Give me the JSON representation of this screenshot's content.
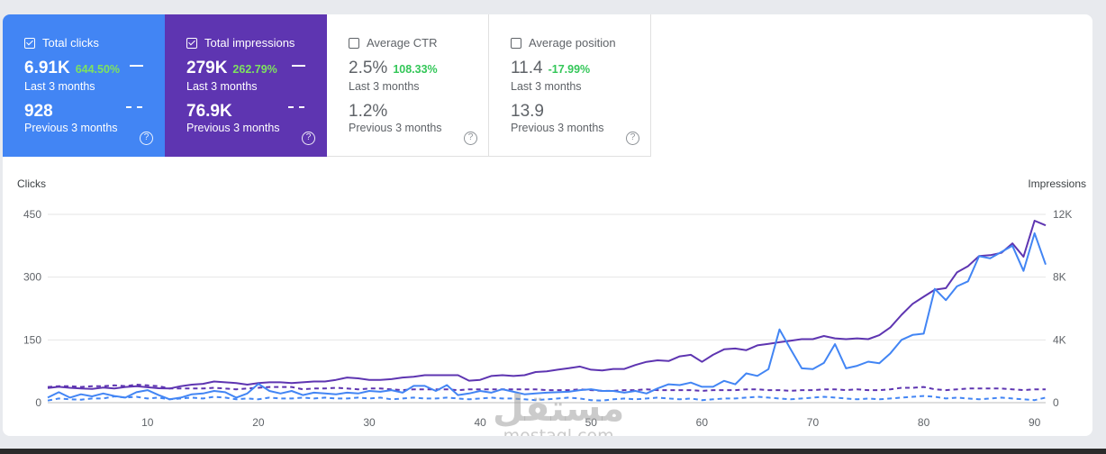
{
  "cards": [
    {
      "id": "clicks",
      "title": "Total clicks",
      "checked": true,
      "value": "6.91K",
      "change": "644.50%",
      "period": "Last 3 months",
      "prev_value": "928",
      "prev_period": "Previous 3 months"
    },
    {
      "id": "impressions",
      "title": "Total impressions",
      "checked": true,
      "value": "279K",
      "change": "262.79%",
      "period": "Last 3 months",
      "prev_value": "76.9K",
      "prev_period": "Previous 3 months"
    },
    {
      "id": "ctr",
      "title": "Average CTR",
      "checked": false,
      "value": "2.5%",
      "change": "108.33%",
      "period": "Last 3 months",
      "prev_value": "1.2%",
      "prev_period": "Previous 3 months"
    },
    {
      "id": "position",
      "title": "Average position",
      "checked": false,
      "value": "11.4",
      "change": "-17.99%",
      "period": "Last 3 months",
      "prev_value": "13.9",
      "prev_period": "Previous 3 months"
    }
  ],
  "help_glyph": "?",
  "watermark": {
    "main": "مستقل",
    "sub": "mostaql.com"
  },
  "colors": {
    "clicks": "#4285f4",
    "impressions": "#5e35b1"
  },
  "chart_data": {
    "type": "line",
    "ylabel_left": "Clicks",
    "ylabel_right": "Impressions",
    "ylim_left": [
      0,
      450
    ],
    "ylim_right": [
      0,
      12000
    ],
    "yticks_left": [
      "0",
      "150",
      "300",
      "450"
    ],
    "yticks_right": [
      "0",
      "4K",
      "8K",
      "12K"
    ],
    "xlim": [
      1,
      91
    ],
    "xticks": [
      "10",
      "20",
      "30",
      "40",
      "50",
      "60",
      "70",
      "80",
      "90"
    ],
    "grid": true,
    "series": [
      {
        "name": "Clicks",
        "axis": "left",
        "style": "solid",
        "color": "#4285f4",
        "x": [
          1,
          2,
          3,
          4,
          5,
          6,
          7,
          8,
          9,
          10,
          11,
          12,
          13,
          14,
          15,
          16,
          17,
          18,
          19,
          20,
          21,
          22,
          23,
          24,
          25,
          26,
          27,
          28,
          29,
          30,
          31,
          32,
          33,
          34,
          35,
          36,
          37,
          38,
          39,
          40,
          41,
          42,
          43,
          44,
          45,
          46,
          47,
          48,
          49,
          50,
          51,
          52,
          53,
          54,
          55,
          56,
          57,
          58,
          59,
          60,
          61,
          62,
          63,
          64,
          65,
          66,
          67,
          68,
          69,
          70,
          71,
          72,
          73,
          74,
          75,
          76,
          77,
          78,
          79,
          80,
          81,
          82,
          83,
          84,
          85,
          86,
          87,
          88,
          89,
          90,
          91
        ],
        "y": [
          12,
          25,
          12,
          20,
          15,
          22,
          16,
          12,
          25,
          30,
          18,
          8,
          12,
          20,
          22,
          28,
          25,
          12,
          22,
          45,
          28,
          22,
          28,
          18,
          24,
          22,
          20,
          24,
          22,
          28,
          26,
          30,
          24,
          40,
          40,
          28,
          42,
          18,
          22,
          28,
          24,
          32,
          26,
          20,
          22,
          24,
          25,
          26,
          30,
          32,
          28,
          28,
          24,
          28,
          22,
          34,
          44,
          42,
          48,
          38,
          38,
          52,
          44,
          70,
          64,
          80,
          175,
          128,
          82,
          80,
          95,
          140,
          82,
          88,
          98,
          94,
          118,
          150,
          162,
          165,
          272,
          245,
          278,
          290,
          350,
          345,
          360,
          375,
          315,
          405,
          330
        ]
      },
      {
        "name": "Impressions",
        "axis": "right",
        "style": "solid",
        "color": "#5e35b1",
        "x": [
          1,
          2,
          3,
          4,
          5,
          6,
          7,
          8,
          9,
          10,
          11,
          12,
          13,
          14,
          15,
          16,
          17,
          18,
          19,
          20,
          21,
          22,
          23,
          24,
          25,
          26,
          27,
          28,
          29,
          30,
          31,
          32,
          33,
          34,
          35,
          36,
          37,
          38,
          39,
          40,
          41,
          42,
          43,
          44,
          45,
          46,
          47,
          48,
          49,
          50,
          51,
          52,
          53,
          54,
          55,
          56,
          57,
          58,
          59,
          60,
          61,
          62,
          63,
          64,
          65,
          66,
          67,
          68,
          69,
          70,
          71,
          72,
          73,
          74,
          75,
          76,
          77,
          78,
          79,
          80,
          81,
          82,
          83,
          84,
          85,
          86,
          87,
          88,
          89,
          90,
          91
        ],
        "y": [
          930,
          1010,
          950,
          900,
          880,
          960,
          900,
          1000,
          1050,
          980,
          920,
          900,
          1050,
          1150,
          1200,
          1350,
          1300,
          1250,
          1150,
          1250,
          1300,
          1300,
          1250,
          1300,
          1350,
          1350,
          1450,
          1600,
          1550,
          1450,
          1450,
          1500,
          1600,
          1650,
          1750,
          1750,
          1750,
          1750,
          1400,
          1450,
          1700,
          1750,
          1700,
          1750,
          1950,
          2000,
          2100,
          2200,
          2300,
          2100,
          2050,
          2150,
          2150,
          2400,
          2600,
          2700,
          2650,
          2950,
          3050,
          2600,
          3050,
          3400,
          3450,
          3350,
          3650,
          3750,
          3850,
          3950,
          4050,
          4050,
          4250,
          4100,
          4050,
          4100,
          4050,
          4300,
          4800,
          5600,
          6300,
          6750,
          7200,
          7300,
          8300,
          8700,
          9350,
          9400,
          9550,
          10150,
          9300,
          11600,
          11300
        ]
      },
      {
        "name": "Clicks (previous)",
        "axis": "left",
        "style": "dashed",
        "color": "#4285f4",
        "x": [
          1,
          2,
          3,
          4,
          5,
          6,
          7,
          8,
          9,
          10,
          11,
          12,
          13,
          14,
          15,
          16,
          17,
          18,
          19,
          20,
          21,
          22,
          23,
          24,
          25,
          26,
          27,
          28,
          29,
          30,
          31,
          32,
          33,
          34,
          35,
          36,
          37,
          38,
          39,
          40,
          41,
          42,
          43,
          44,
          45,
          46,
          47,
          48,
          49,
          50,
          51,
          52,
          53,
          54,
          55,
          56,
          57,
          58,
          59,
          60,
          61,
          62,
          63,
          64,
          65,
          66,
          67,
          68,
          69,
          70,
          71,
          72,
          73,
          74,
          75,
          76,
          77,
          78,
          79,
          80,
          81,
          82,
          83,
          84,
          85,
          86,
          87,
          88,
          89,
          90,
          91
        ],
        "y": [
          5,
          10,
          8,
          7,
          10,
          10,
          15,
          12,
          14,
          10,
          12,
          8,
          10,
          12,
          10,
          14,
          12,
          8,
          10,
          8,
          12,
          10,
          10,
          12,
          10,
          12,
          10,
          10,
          12,
          10,
          12,
          8,
          10,
          12,
          10,
          10,
          12,
          10,
          8,
          10,
          12,
          10,
          10,
          8,
          6,
          8,
          10,
          12,
          10,
          6,
          5,
          8,
          10,
          8,
          10,
          12,
          10,
          8,
          10,
          6,
          8,
          10,
          10,
          12,
          14,
          12,
          10,
          8,
          10,
          12,
          14,
          12,
          10,
          8,
          10,
          8,
          10,
          12,
          14,
          16,
          14,
          10,
          12,
          10,
          8,
          10,
          12,
          10,
          8,
          6,
          12
        ]
      },
      {
        "name": "Impressions (previous)",
        "axis": "right",
        "style": "dashed",
        "color": "#5e35b1",
        "x": [
          1,
          2,
          3,
          4,
          5,
          6,
          7,
          8,
          9,
          10,
          11,
          12,
          13,
          14,
          15,
          16,
          17,
          18,
          19,
          20,
          21,
          22,
          23,
          24,
          25,
          26,
          27,
          28,
          29,
          30,
          31,
          32,
          33,
          34,
          35,
          36,
          37,
          38,
          39,
          40,
          41,
          42,
          43,
          44,
          45,
          46,
          47,
          48,
          49,
          50,
          51,
          52,
          53,
          54,
          55,
          56,
          57,
          58,
          59,
          60,
          61,
          62,
          63,
          64,
          65,
          66,
          67,
          68,
          69,
          70,
          71,
          72,
          73,
          74,
          75,
          76,
          77,
          78,
          79,
          80,
          81,
          82,
          83,
          84,
          85,
          86,
          87,
          88,
          89,
          90,
          91
        ],
        "y": [
          1000,
          1050,
          1050,
          1000,
          1050,
          1050,
          1100,
          1050,
          1150,
          1100,
          1050,
          900,
          900,
          900,
          900,
          950,
          900,
          850,
          900,
          950,
          1000,
          1000,
          1000,
          850,
          900,
          900,
          950,
          900,
          850,
          900,
          900,
          850,
          800,
          850,
          850,
          850,
          850,
          800,
          850,
          850,
          850,
          850,
          850,
          850,
          850,
          800,
          800,
          800,
          850,
          800,
          750,
          750,
          800,
          800,
          850,
          800,
          800,
          800,
          800,
          750,
          800,
          800,
          800,
          850,
          850,
          800,
          800,
          750,
          800,
          800,
          850,
          850,
          800,
          850,
          800,
          800,
          850,
          950,
          950,
          1000,
          850,
          800,
          850,
          900,
          900,
          900,
          900,
          850,
          800,
          850,
          850
        ]
      }
    ]
  }
}
